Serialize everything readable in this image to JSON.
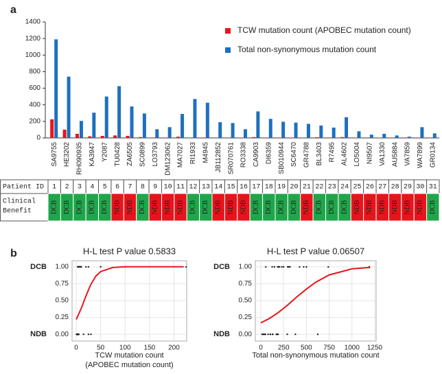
{
  "panel_labels": [
    "a",
    "b"
  ],
  "chart_data": [
    {
      "type": "bar",
      "categories": [
        "SA9755",
        "HE3202",
        "RH090935",
        "KA3947",
        "Y2087",
        "TU0428",
        "ZA6505",
        "SC0899",
        "LO3793",
        "DM123062",
        "MA7027",
        "RI1933",
        "M4945",
        "JB112852",
        "SR070761",
        "RO3338",
        "CA9903",
        "DI6359",
        "SB010944",
        "SC6470",
        "GR4788",
        "BL3403",
        "R7495",
        "AL4602",
        "LO5004",
        "NI9507",
        "VA1330",
        "AU5884",
        "VA7859",
        "WA7899",
        "GR0134"
      ],
      "series": [
        {
          "name": "TCW mutation count (APOBEC mutation count)",
          "color": "#e8141b",
          "values": [
            225,
            100,
            50,
            20,
            25,
            30,
            25,
            10,
            5,
            5,
            15,
            5,
            5,
            2,
            2,
            1,
            10,
            5,
            5,
            5,
            2,
            8,
            5,
            10,
            3,
            1,
            2,
            2,
            1,
            5,
            3
          ]
        },
        {
          "name": "Total non-synonymous mutation count",
          "color": "#1f6fbf",
          "values": [
            1190,
            740,
            205,
            305,
            500,
            625,
            380,
            295,
            105,
            130,
            290,
            470,
            425,
            190,
            180,
            105,
            320,
            230,
            195,
            185,
            170,
            150,
            125,
            250,
            80,
            40,
            50,
            30,
            15,
            130,
            55
          ]
        }
      ],
      "ylim": [
        0,
        1400
      ],
      "yticks": [
        0,
        200,
        400,
        600,
        800,
        1000,
        1200,
        1400
      ]
    },
    {
      "type": "scatter",
      "title": "H-L test P value 0.5833",
      "xlabel": [
        "TCW mutation count",
        "(APOBEC mutation count)"
      ],
      "xlim": [
        -8.5,
        226
      ],
      "xticks": [
        0,
        50,
        100,
        150,
        200
      ],
      "ylim": [
        -0.1,
        1.09
      ],
      "yticks": [
        {
          "value": 0,
          "label": "0.00"
        },
        {
          "value": 0.25,
          "label": "0.25"
        },
        {
          "value": 0.5,
          "label": "0.50"
        },
        {
          "value": 0.75,
          "label": "0.75"
        },
        {
          "value": 1,
          "label": "1.00"
        }
      ],
      "class_labels": [
        {
          "value": 1,
          "label": "DCB"
        },
        {
          "value": 0,
          "label": "NDB"
        }
      ],
      "points": {
        "x": [
          225,
          100,
          50,
          20,
          25,
          30,
          25,
          10,
          5,
          5,
          15,
          5,
          5,
          2,
          2,
          1,
          10,
          5,
          5,
          5,
          2,
          8,
          5,
          10,
          3,
          1,
          2,
          2,
          1,
          5,
          3
        ],
        "y": [
          1,
          1,
          1,
          1,
          1,
          0,
          0,
          1,
          0,
          0,
          0,
          1,
          1,
          0,
          0,
          0,
          1,
          1,
          1,
          1,
          0,
          1,
          1,
          1,
          0,
          0,
          0,
          0,
          0,
          0,
          1
        ]
      },
      "curve": {
        "color": "#e8141b",
        "x": [
          0,
          10,
          20,
          30,
          40,
          50,
          75,
          100,
          150,
          220
        ],
        "y": [
          0.22,
          0.38,
          0.57,
          0.74,
          0.86,
          0.93,
          0.99,
          1,
          1,
          1
        ]
      }
    },
    {
      "type": "scatter",
      "title": "H-L test P value 0.06507",
      "xlabel": [
        "Total non-synonymous mutation count"
      ],
      "xlim": [
        -60,
        1265
      ],
      "xticks": [
        0,
        250,
        500,
        750,
        1000,
        1250
      ],
      "ylim": [
        -0.1,
        1.09
      ],
      "yticks": [
        {
          "value": 0,
          "label": "0.00"
        },
        {
          "value": 0.25,
          "label": "0.25"
        },
        {
          "value": 0.5,
          "label": "0.50"
        },
        {
          "value": 0.75,
          "label": "0.75"
        },
        {
          "value": 1,
          "label": "1.00"
        }
      ],
      "class_labels": [
        {
          "value": 1,
          "label": "DCB"
        },
        {
          "value": 0,
          "label": "NDB"
        }
      ],
      "points": {
        "x": [
          1190,
          740,
          205,
          305,
          500,
          625,
          380,
          295,
          105,
          130,
          290,
          470,
          425,
          190,
          180,
          105,
          320,
          230,
          195,
          185,
          170,
          150,
          125,
          250,
          80,
          40,
          50,
          30,
          15,
          130,
          55
        ],
        "y": [
          1,
          1,
          1,
          1,
          1,
          0,
          0,
          1,
          0,
          0,
          0,
          1,
          1,
          0,
          0,
          0,
          1,
          1,
          1,
          1,
          0,
          1,
          1,
          1,
          0,
          0,
          0,
          0,
          0,
          0,
          1
        ]
      },
      "curve": {
        "color": "#e8141b",
        "x": [
          0,
          100,
          200,
          300,
          400,
          500,
          600,
          750,
          1000,
          1200
        ],
        "y": [
          0.17,
          0.24,
          0.33,
          0.44,
          0.56,
          0.67,
          0.77,
          0.88,
          0.97,
          0.99
        ]
      }
    }
  ],
  "table": {
    "header": "Patient ID",
    "row_label": [
      "Clinical",
      "Benefit"
    ],
    "ids": [
      1,
      2,
      3,
      4,
      5,
      6,
      7,
      8,
      9,
      10,
      11,
      12,
      13,
      14,
      15,
      16,
      17,
      18,
      19,
      20,
      21,
      22,
      23,
      24,
      25,
      26,
      27,
      28,
      29,
      30,
      31
    ],
    "benefit": [
      "DCB",
      "DCB",
      "DCB",
      "DCB",
      "DCB",
      "NDB",
      "NDB",
      "DCB",
      "NDB",
      "NDB",
      "NDB",
      "DCB",
      "DCB",
      "NDB",
      "NDB",
      "NDB",
      "DCB",
      "DCB",
      "DCB",
      "DCB",
      "NDB",
      "DCB",
      "DCB",
      "DCB",
      "NDB",
      "NDB",
      "NDB",
      "NDB",
      "NDB",
      "NDB",
      "DCB"
    ],
    "colors": {
      "DCB": "#1fa64a",
      "NDB": "#e8141b"
    }
  }
}
